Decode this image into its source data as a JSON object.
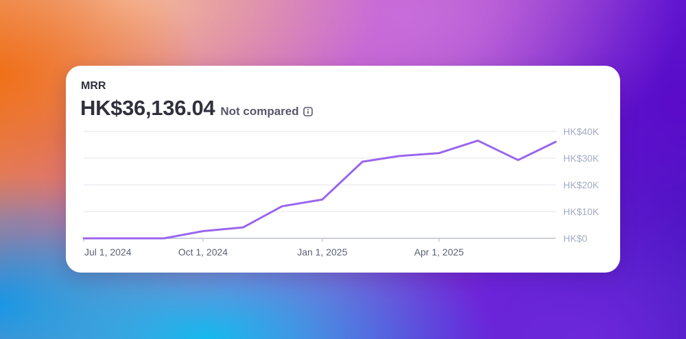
{
  "metric": {
    "label": "MRR",
    "value": "HK$36,136.04",
    "compare_label": "Not compared",
    "info_icon": "info-icon"
  },
  "colors": {
    "line": "#9966ee",
    "grid": "#e3e6ee",
    "axis": "#b9bfce",
    "tick_text": "#a3acc2",
    "x_tick_text": "#596171"
  },
  "chart_data": {
    "type": "line",
    "title": "MRR",
    "x_start": "2024-07-01",
    "x_end": "2025-06-30",
    "x_ticks": [
      {
        "date": "2024-07-01",
        "label": "Jul 1, 2024"
      },
      {
        "date": "2024-10-01",
        "label": "Oct 1, 2024"
      },
      {
        "date": "2025-01-01",
        "label": "Jan 1, 2025"
      },
      {
        "date": "2025-04-01",
        "label": "Apr 1, 2025"
      }
    ],
    "y_ticks": [
      {
        "value": 0,
        "label": "HK$0"
      },
      {
        "value": 10000,
        "label": "HK$10K"
      },
      {
        "value": 20000,
        "label": "HK$20K"
      },
      {
        "value": 30000,
        "label": "HK$30K"
      },
      {
        "value": 40000,
        "label": "HK$40K"
      }
    ],
    "ylim": [
      0,
      40000
    ],
    "grid": true,
    "series": [
      {
        "points": [
          {
            "x": "2024-07-01",
            "y": 0
          },
          {
            "x": "2024-08-01",
            "y": 0
          },
          {
            "x": "2024-09-01",
            "y": 0
          },
          {
            "x": "2024-10-01",
            "y": 2700
          },
          {
            "x": "2024-11-01",
            "y": 4100
          },
          {
            "x": "2024-12-01",
            "y": 12000
          },
          {
            "x": "2025-01-01",
            "y": 14500
          },
          {
            "x": "2025-02-01",
            "y": 28700
          },
          {
            "x": "2025-03-01",
            "y": 30800
          },
          {
            "x": "2025-04-01",
            "y": 31900
          },
          {
            "x": "2025-05-01",
            "y": 36600
          },
          {
            "x": "2025-06-01",
            "y": 29300
          },
          {
            "x": "2025-06-30",
            "y": 36136.04
          }
        ]
      }
    ]
  }
}
